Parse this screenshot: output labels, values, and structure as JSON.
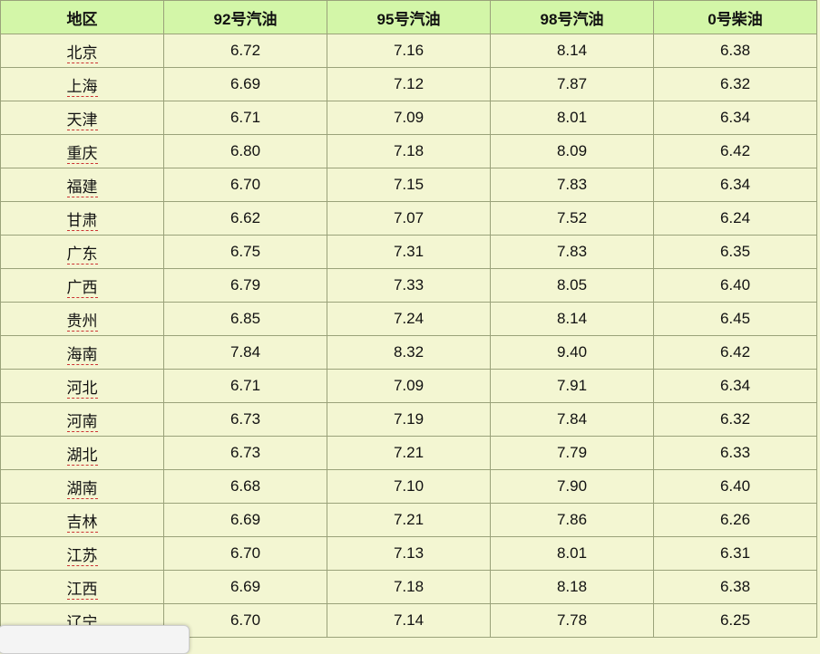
{
  "headers": [
    "地区",
    "92号汽油",
    "95号汽油",
    "98号汽油",
    "0号柴油"
  ],
  "rows": [
    [
      "北京",
      "6.72",
      "7.16",
      "8.14",
      "6.38"
    ],
    [
      "上海",
      "6.69",
      "7.12",
      "7.87",
      "6.32"
    ],
    [
      "天津",
      "6.71",
      "7.09",
      "8.01",
      "6.34"
    ],
    [
      "重庆",
      "6.80",
      "7.18",
      "8.09",
      "6.42"
    ],
    [
      "福建",
      "6.70",
      "7.15",
      "7.83",
      "6.34"
    ],
    [
      "甘肃",
      "6.62",
      "7.07",
      "7.52",
      "6.24"
    ],
    [
      "广东",
      "6.75",
      "7.31",
      "7.83",
      "6.35"
    ],
    [
      "广西",
      "6.79",
      "7.33",
      "8.05",
      "6.40"
    ],
    [
      "贵州",
      "6.85",
      "7.24",
      "8.14",
      "6.45"
    ],
    [
      "海南",
      "7.84",
      "8.32",
      "9.40",
      "6.42"
    ],
    [
      "河北",
      "6.71",
      "7.09",
      "7.91",
      "6.34"
    ],
    [
      "河南",
      "6.73",
      "7.19",
      "7.84",
      "6.32"
    ],
    [
      "湖北",
      "6.73",
      "7.21",
      "7.79",
      "6.33"
    ],
    [
      "湖南",
      "6.68",
      "7.10",
      "7.90",
      "6.40"
    ],
    [
      "吉林",
      "6.69",
      "7.21",
      "7.86",
      "6.26"
    ],
    [
      "江苏",
      "6.70",
      "7.13",
      "8.01",
      "6.31"
    ],
    [
      "江西",
      "6.69",
      "7.18",
      "8.18",
      "6.38"
    ],
    [
      "辽宁",
      "6.70",
      "7.14",
      "7.78",
      "6.25"
    ]
  ],
  "colors": {
    "header_bg": "#d3f6a8",
    "cell_bg": "#f3f6d2",
    "border": "#9aa27a"
  }
}
